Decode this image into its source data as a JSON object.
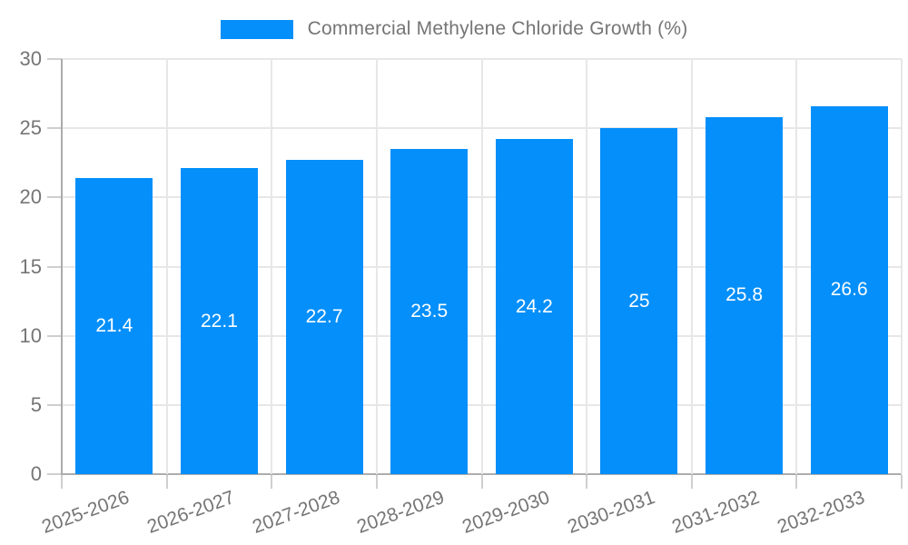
{
  "legend": {
    "label": "Commercial Methylene Chloride Growth (%)",
    "marker_color": "#048FFA"
  },
  "chart_data": {
    "type": "bar",
    "title": "Commercial Methylene Chloride Growth (%)",
    "categories": [
      "2025-2026",
      "2026-2027",
      "2027-2028",
      "2028-2029",
      "2029-2030",
      "2030-2031",
      "2031-2032",
      "2032-2033"
    ],
    "values": [
      21.4,
      22.1,
      22.7,
      23.5,
      24.2,
      25,
      25.8,
      26.6
    ],
    "data_labels": [
      "21.4",
      "22.1",
      "22.7",
      "23.5",
      "24.2",
      "25",
      "25.8",
      "26.6"
    ],
    "xlabel": "",
    "ylabel": "",
    "ylim": [
      0,
      30
    ],
    "yticks": [
      0,
      5,
      10,
      15,
      20,
      25,
      30
    ],
    "grid": true,
    "legend_position": "top",
    "bar_color": "#048FFA",
    "data_label_color": "#ffffff",
    "axis_text_color": "#757575"
  }
}
